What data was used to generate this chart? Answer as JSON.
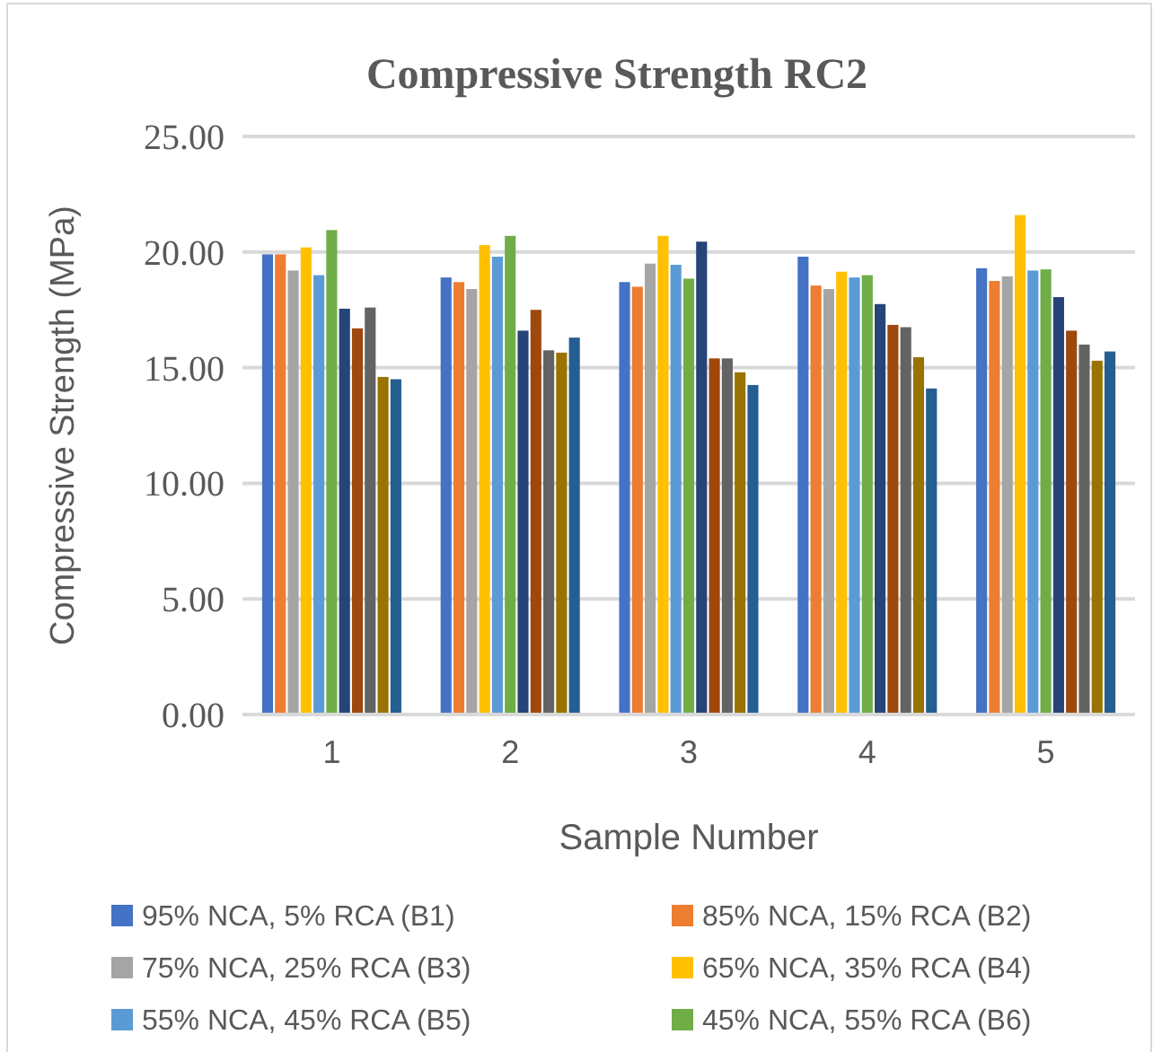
{
  "chart_data": {
    "type": "bar",
    "title": "Compressive Strength RC2",
    "xlabel": "Sample Number",
    "ylabel": "Compressive Strength (MPa)",
    "categories": [
      "1",
      "2",
      "3",
      "4",
      "5"
    ],
    "ylim": [
      0,
      25
    ],
    "yticks": [
      {
        "value": 0,
        "label": "0.00"
      },
      {
        "value": 5,
        "label": "5.00"
      },
      {
        "value": 10,
        "label": "10.00"
      },
      {
        "value": 15,
        "label": "15.00"
      },
      {
        "value": 20,
        "label": "20.00"
      },
      {
        "value": 25,
        "label": "25.00"
      }
    ],
    "grid": "y",
    "legend": "bottom",
    "series": [
      {
        "name": "95% NCA, 5% RCA (B1)",
        "color": "#4472c4",
        "values": [
          19.9,
          18.9,
          18.7,
          19.8,
          19.3
        ]
      },
      {
        "name": "85% NCA, 15% RCA (B2)",
        "color": "#ed7d31",
        "values": [
          19.9,
          18.7,
          18.5,
          18.55,
          18.75
        ]
      },
      {
        "name": "75% NCA, 25% RCA (B3)",
        "color": "#a5a5a5",
        "values": [
          19.2,
          18.4,
          19.5,
          18.4,
          18.95
        ]
      },
      {
        "name": "65% NCA, 35% RCA (B4)",
        "color": "#ffc000",
        "values": [
          20.2,
          20.3,
          20.7,
          19.15,
          21.6
        ]
      },
      {
        "name": "55% NCA, 45% RCA (B5)",
        "color": "#5b9bd5",
        "values": [
          19.0,
          19.8,
          19.45,
          18.9,
          19.2
        ]
      },
      {
        "name": "45% NCA, 55% RCA (B6)",
        "color": "#70ad47",
        "values": [
          20.95,
          20.7,
          18.85,
          19.0,
          19.25
        ]
      },
      {
        "color": "#264478",
        "values": [
          17.55,
          16.6,
          20.45,
          17.75,
          18.05
        ]
      },
      {
        "color": "#9e480e",
        "values": [
          16.7,
          17.5,
          15.4,
          16.85,
          16.6
        ]
      },
      {
        "color": "#636363",
        "values": [
          17.6,
          15.75,
          15.4,
          16.75,
          16.0
        ]
      },
      {
        "color": "#997300",
        "values": [
          14.6,
          15.65,
          14.8,
          15.45,
          15.3
        ]
      },
      {
        "color": "#255e91",
        "values": [
          14.5,
          16.3,
          14.25,
          14.1,
          15.7
        ]
      }
    ]
  }
}
